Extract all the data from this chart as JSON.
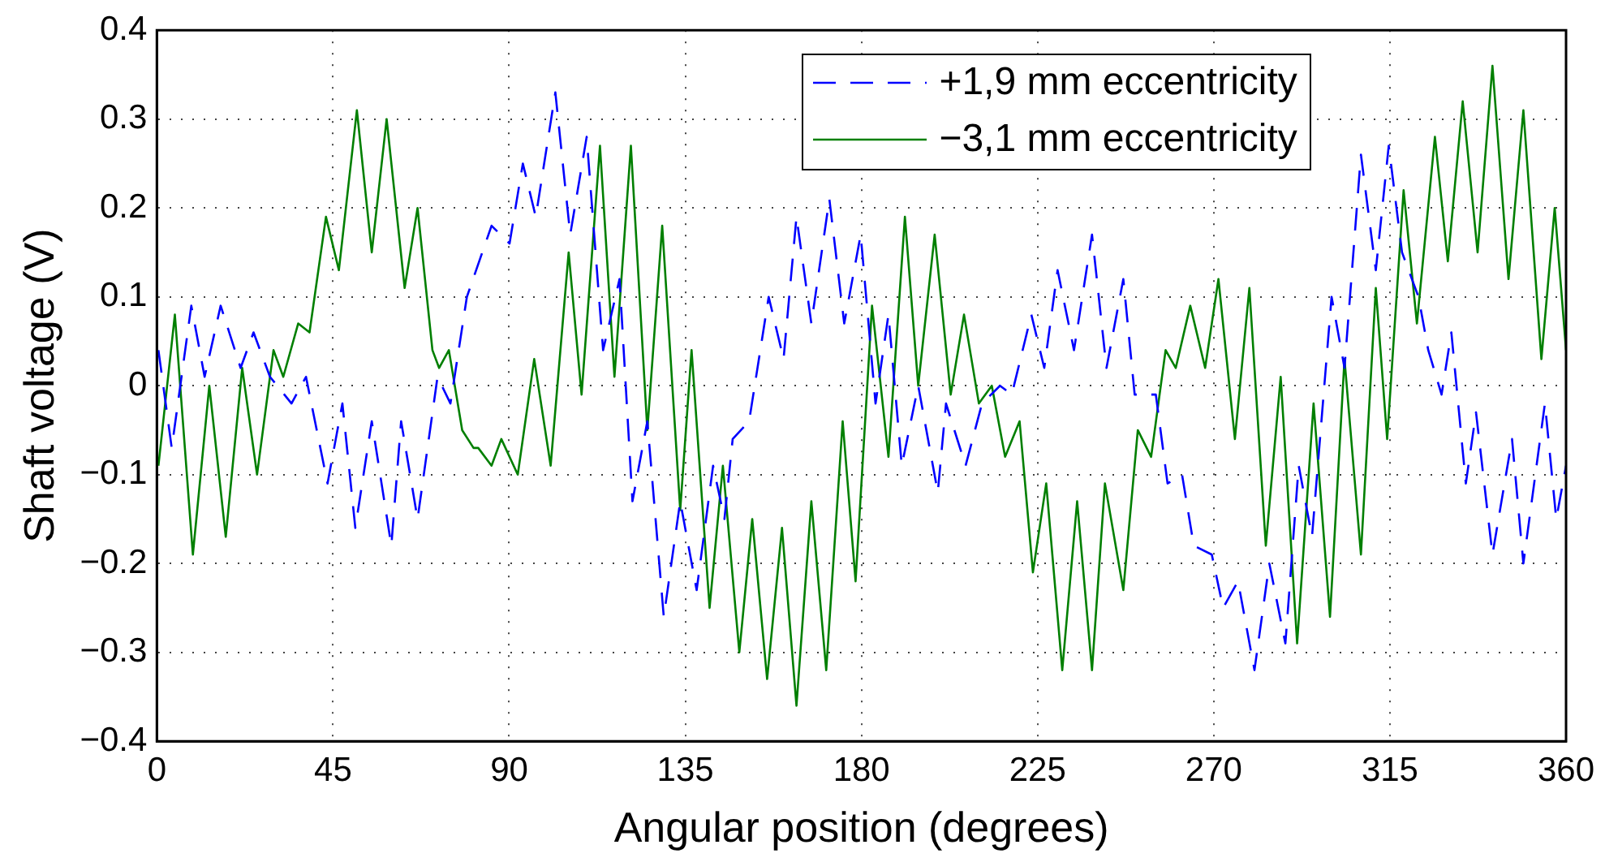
{
  "chart_data": {
    "type": "line",
    "xlabel": "Angular position (degrees)",
    "ylabel": "Shaft voltage (V)",
    "xlim": [
      0,
      360
    ],
    "xticks": [
      0,
      45,
      90,
      135,
      180,
      225,
      270,
      315,
      360
    ],
    "ylim": [
      -0.4,
      0.4
    ],
    "yticks": [
      -0.4,
      -0.3,
      -0.2,
      -0.1,
      0,
      0.1,
      0.2,
      0.3,
      0.4
    ],
    "grid": true,
    "legend": "top right",
    "marker": "none",
    "series": [
      {
        "name": "+1,9 mm eccentricity",
        "color": "#0000ff",
        "line_style": "dashed",
        "x": [
          0.4,
          3.8,
          8.8,
          12.2,
          16.3,
          21.4,
          24.7,
          28.9,
          34.4,
          38.1,
          43.6,
          47.4,
          50.7,
          54.9,
          59.9,
          62.4,
          66.6,
          71.7,
          75.0,
          79.2,
          85.5,
          90.1,
          93.5,
          96.8,
          101.8,
          105.6,
          109.8,
          114.0,
          118.2,
          121.5,
          125.3,
          129.5,
          133.7,
          137.9,
          142.1,
          145.0,
          147.1,
          151.3,
          156.3,
          160.1,
          163.4,
          167.2,
          171.8,
          175.6,
          179.8,
          183.6,
          186.9,
          190.3,
          194.5,
          199.5,
          201.6,
          206.6,
          210.8,
          215.4,
          218.4,
          223.4,
          226.7,
          230.1,
          234.3,
          238.9,
          242.6,
          246.9,
          249.8,
          255.2,
          258.2,
          261.9,
          264.9,
          269.5,
          272.4,
          276.2,
          280.4,
          284.2,
          288.3,
          291.7,
          295.1,
          300.1,
          303.4,
          307.6,
          311.4,
          314.7,
          318.1,
          322.3,
          324.8,
          328.2,
          330.7,
          334.4,
          337.0,
          341.2,
          346.2,
          349.1,
          354.6,
          357.5,
          360.0
        ],
        "values": [
          0.04,
          -0.07,
          0.09,
          0.01,
          0.09,
          0.02,
          0.06,
          0.01,
          -0.02,
          0.01,
          -0.11,
          -0.02,
          -0.16,
          -0.04,
          -0.18,
          -0.04,
          -0.15,
          0.01,
          -0.02,
          0.1,
          0.18,
          0.16,
          0.25,
          0.19,
          0.33,
          0.17,
          0.28,
          0.04,
          0.12,
          -0.13,
          -0.04,
          -0.26,
          -0.13,
          -0.23,
          -0.09,
          -0.15,
          -0.06,
          -0.04,
          0.1,
          0.03,
          0.19,
          0.07,
          0.21,
          0.07,
          0.17,
          -0.02,
          0.08,
          -0.09,
          0.0,
          -0.12,
          -0.02,
          -0.09,
          -0.02,
          0.0,
          -0.01,
          0.08,
          0.02,
          0.13,
          0.04,
          0.17,
          0.02,
          0.12,
          -0.01,
          -0.01,
          -0.11,
          -0.1,
          -0.18,
          -0.19,
          -0.25,
          -0.22,
          -0.32,
          -0.2,
          -0.29,
          -0.09,
          -0.17,
          0.1,
          0.02,
          0.26,
          0.13,
          0.27,
          0.15,
          0.1,
          0.04,
          -0.01,
          0.06,
          -0.11,
          -0.03,
          -0.19,
          -0.06,
          -0.2,
          -0.02,
          -0.15,
          -0.09
        ]
      },
      {
        "name": "−3,1 mm eccentricity",
        "color": "#007f00",
        "line_style": "solid",
        "x": [
          0.4,
          4.6,
          9.2,
          13.4,
          17.6,
          21.8,
          25.6,
          29.8,
          32.3,
          36.1,
          39.0,
          43.2,
          46.5,
          51.1,
          54.9,
          58.7,
          63.3,
          66.6,
          70.4,
          72.1,
          74.6,
          78.0,
          80.9,
          82.1,
          85.5,
          88.0,
          92.2,
          96.4,
          100.6,
          105.2,
          108.5,
          113.2,
          116.9,
          121.1,
          125.3,
          129.1,
          133.7,
          136.6,
          141.2,
          144.6,
          148.8,
          152.1,
          155.9,
          159.7,
          163.4,
          167.2,
          171.0,
          175.2,
          178.5,
          182.7,
          186.9,
          191.1,
          194.5,
          198.7,
          202.8,
          206.2,
          210.0,
          213.3,
          216.7,
          220.4,
          223.8,
          227.2,
          231.3,
          235.1,
          238.9,
          242.2,
          246.9,
          250.6,
          254.0,
          257.7,
          260.3,
          264.0,
          267.8,
          271.2,
          275.4,
          279.1,
          283.3,
          287.1,
          291.3,
          295.5,
          299.7,
          303.4,
          307.6,
          311.4,
          314.3,
          318.5,
          321.9,
          326.5,
          329.8,
          333.6,
          337.4,
          341.2,
          345.3,
          349.1,
          353.7,
          357.1,
          360.0
        ],
        "values": [
          -0.09,
          0.08,
          -0.19,
          0.0,
          -0.17,
          0.02,
          -0.1,
          0.04,
          0.01,
          0.07,
          0.06,
          0.19,
          0.13,
          0.31,
          0.15,
          0.3,
          0.11,
          0.2,
          0.04,
          0.02,
          0.04,
          -0.05,
          -0.07,
          -0.07,
          -0.09,
          -0.06,
          -0.1,
          0.03,
          -0.09,
          0.15,
          -0.01,
          0.27,
          0.01,
          0.27,
          -0.05,
          0.18,
          -0.14,
          0.04,
          -0.25,
          -0.09,
          -0.3,
          -0.15,
          -0.33,
          -0.16,
          -0.36,
          -0.13,
          -0.32,
          -0.04,
          -0.22,
          0.09,
          -0.08,
          0.19,
          0.0,
          0.17,
          -0.01,
          0.08,
          -0.02,
          0.0,
          -0.08,
          -0.04,
          -0.21,
          -0.11,
          -0.32,
          -0.13,
          -0.32,
          -0.11,
          -0.23,
          -0.05,
          -0.08,
          0.04,
          0.02,
          0.09,
          0.02,
          0.12,
          -0.06,
          0.11,
          -0.18,
          0.01,
          -0.29,
          -0.02,
          -0.26,
          0.03,
          -0.19,
          0.11,
          -0.06,
          0.22,
          0.07,
          0.28,
          0.14,
          0.32,
          0.15,
          0.36,
          0.12,
          0.31,
          0.03,
          0.2,
          0.04
        ]
      }
    ]
  }
}
